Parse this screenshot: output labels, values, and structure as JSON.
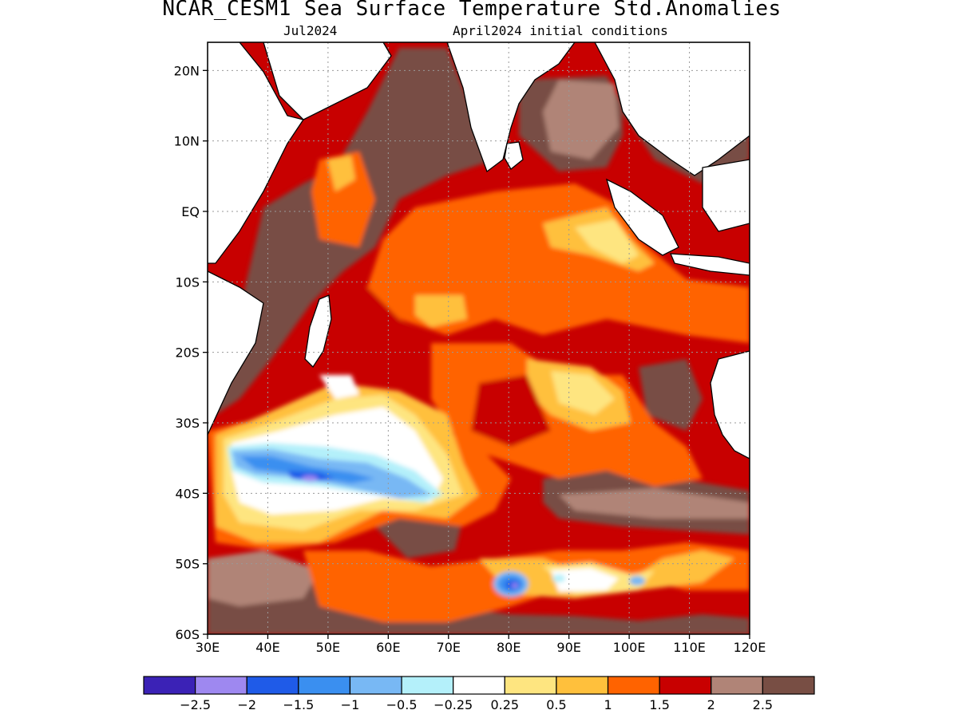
{
  "title": "NCAR_CESM1 Sea Surface Temperature Std.Anomalies",
  "subtitle_left": "Jul2024",
  "subtitle_right": "April2024 initial conditions",
  "map": {
    "lon_range": [
      30,
      120
    ],
    "lat_range": [
      -60,
      24
    ],
    "lat_ticks": [
      {
        "value": 20,
        "label": "20N"
      },
      {
        "value": 10,
        "label": "10N"
      },
      {
        "value": 0,
        "label": "EQ"
      },
      {
        "value": -10,
        "label": "10S"
      },
      {
        "value": -20,
        "label": "20S"
      },
      {
        "value": -30,
        "label": "30S"
      },
      {
        "value": -40,
        "label": "40S"
      },
      {
        "value": -50,
        "label": "50S"
      },
      {
        "value": -60,
        "label": "60S"
      }
    ],
    "lon_ticks": [
      {
        "value": 30,
        "label": "30E"
      },
      {
        "value": 40,
        "label": "40E"
      },
      {
        "value": 50,
        "label": "50E"
      },
      {
        "value": 60,
        "label": "60E"
      },
      {
        "value": 70,
        "label": "70E"
      },
      {
        "value": 80,
        "label": "80E"
      },
      {
        "value": 90,
        "label": "90E"
      },
      {
        "value": 100,
        "label": "100E"
      },
      {
        "value": 110,
        "label": "110E"
      },
      {
        "value": 120,
        "label": "120E"
      }
    ],
    "grid": "dotted",
    "land_color": "#ffffff",
    "coastline_color": "#000000"
  },
  "colorbar": {
    "colors": [
      "#3b22b6",
      "#9e88f0",
      "#1f5be8",
      "#3a8ff0",
      "#78b8f4",
      "#b4f0fa",
      "#ffffff",
      "#fee580",
      "#ffc03c",
      "#ff6300",
      "#c80000",
      "#b08477",
      "#784e44"
    ],
    "labels": [
      "−2.5",
      "−2",
      "−1.5",
      "−1",
      "−0.5",
      "−0.25",
      "0.25",
      "0.5",
      "1",
      "1.5",
      "2",
      "2.5"
    ]
  }
}
